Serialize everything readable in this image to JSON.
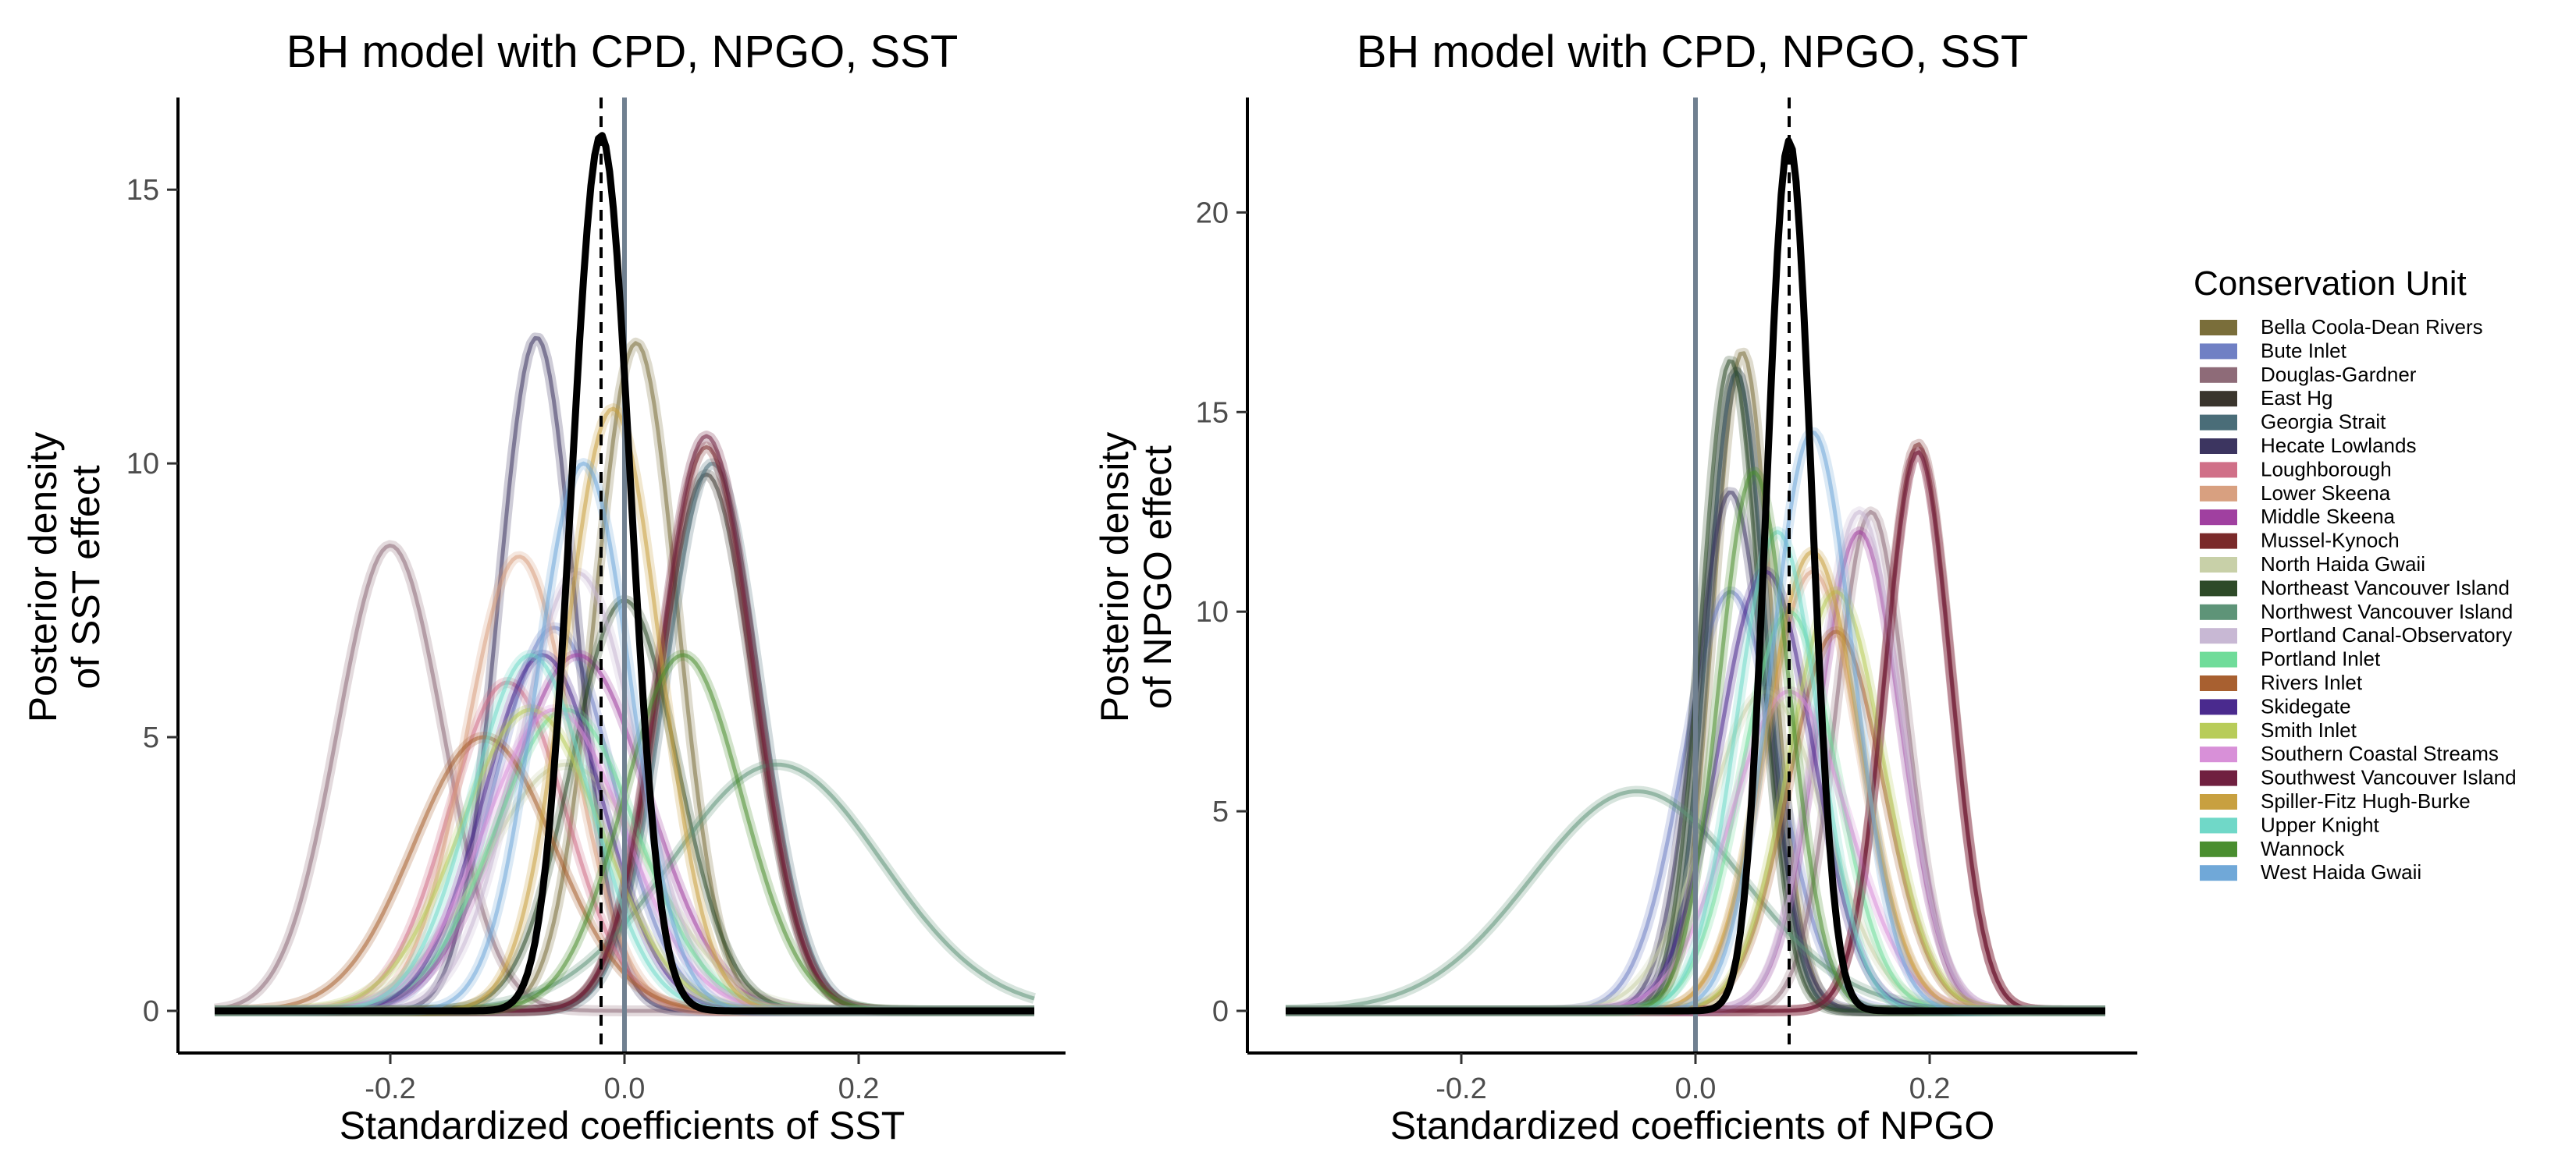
{
  "chart_data": [
    {
      "type": "line",
      "title": "BH model with CPD, NPGO, SST",
      "xlabel": "Standardized coefficients of SST",
      "ylabel": "Posterior density\nof SST effect",
      "xlim": [
        -0.35,
        0.35
      ],
      "ylim": [
        0,
        16
      ],
      "xticks": [
        -0.2,
        0.0,
        0.2
      ],
      "xtick_labels": [
        "-0.2",
        "0.0",
        "0.2"
      ],
      "yticks": [
        0,
        5,
        10,
        15
      ],
      "ytick_labels": [
        "0",
        "5",
        "10",
        "15"
      ],
      "reference_lines": [
        {
          "x": 0.0,
          "style": "solid",
          "color": "#708090"
        },
        {
          "x": -0.02,
          "style": "dashed",
          "color": "#000000"
        }
      ],
      "overall": {
        "mean": -0.02,
        "sd": 0.025,
        "peak": 16.0,
        "color": "#000000"
      },
      "cu_densities": [
        {
          "unit": "Bella Coola-Dean Rivers",
          "mean": 0.01,
          "sd": 0.035,
          "peak": 12.2
        },
        {
          "unit": "Bute Inlet",
          "mean": -0.06,
          "sd": 0.05,
          "peak": 7.0
        },
        {
          "unit": "Douglas-Gardner",
          "mean": -0.2,
          "sd": 0.045,
          "peak": 8.5
        },
        {
          "unit": "East Hg",
          "mean": 0.07,
          "sd": 0.04,
          "peak": 9.8
        },
        {
          "unit": "Georgia Strait",
          "mean": 0.075,
          "sd": 0.04,
          "peak": 10.0
        },
        {
          "unit": "Hecate Lowlands",
          "mean": -0.075,
          "sd": 0.033,
          "peak": 12.3
        },
        {
          "unit": "Loughborough",
          "mean": -0.1,
          "sd": 0.05,
          "peak": 6.0
        },
        {
          "unit": "Lower Skeena",
          "mean": -0.09,
          "sd": 0.045,
          "peak": 8.3
        },
        {
          "unit": "Middle Skeena",
          "mean": -0.04,
          "sd": 0.06,
          "peak": 6.5
        },
        {
          "unit": "Mussel-Kynoch",
          "mean": 0.07,
          "sd": 0.04,
          "peak": 10.3
        },
        {
          "unit": "North Haida Gwaii",
          "mean": -0.05,
          "sd": 0.07,
          "peak": 4.5
        },
        {
          "unit": "Northeast Vancouver Island",
          "mean": 0.0,
          "sd": 0.045,
          "peak": 7.5
        },
        {
          "unit": "Northwest Vancouver Island",
          "mean": 0.13,
          "sd": 0.09,
          "peak": 4.5
        },
        {
          "unit": "Portland Canal-Observatory",
          "mean": -0.04,
          "sd": 0.05,
          "peak": 8.0
        },
        {
          "unit": "Portland Inlet",
          "mean": -0.05,
          "sd": 0.06,
          "peak": 5.5
        },
        {
          "unit": "Rivers Inlet",
          "mean": -0.12,
          "sd": 0.06,
          "peak": 5.0
        },
        {
          "unit": "Skidegate",
          "mean": -0.07,
          "sd": 0.05,
          "peak": 6.5
        },
        {
          "unit": "Smith Inlet",
          "mean": -0.08,
          "sd": 0.06,
          "peak": 5.5
        },
        {
          "unit": "Southern Coastal Streams",
          "mean": -0.06,
          "sd": 0.06,
          "peak": 5.5
        },
        {
          "unit": "Southwest Vancouver Island",
          "mean": 0.07,
          "sd": 0.04,
          "peak": 10.5
        },
        {
          "unit": "Spiller-Fitz Hugh-Burke",
          "mean": -0.01,
          "sd": 0.04,
          "peak": 11.0
        },
        {
          "unit": "Upper Knight",
          "mean": -0.08,
          "sd": 0.05,
          "peak": 6.5
        },
        {
          "unit": "Wannock",
          "mean": 0.05,
          "sd": 0.05,
          "peak": 6.5
        },
        {
          "unit": "West Haida Gwaii",
          "mean": -0.035,
          "sd": 0.04,
          "peak": 10.0
        }
      ]
    },
    {
      "type": "line",
      "title": "BH model with CPD, NPGO, SST",
      "xlabel": "Standardized coefficients of NPGO",
      "ylabel": "Posterior density\nof NPGO effect",
      "xlim": [
        -0.35,
        0.35
      ],
      "ylim": [
        0,
        22
      ],
      "xticks": [
        -0.2,
        0.0,
        0.2
      ],
      "xtick_labels": [
        "-0.2",
        "0.0",
        "0.2"
      ],
      "yticks": [
        0,
        5,
        10,
        15,
        20
      ],
      "ytick_labels": [
        "0",
        "5",
        "10",
        "15",
        "20"
      ],
      "reference_lines": [
        {
          "x": 0.0,
          "style": "solid",
          "color": "#708090"
        },
        {
          "x": 0.08,
          "style": "dashed",
          "color": "#000000"
        }
      ],
      "overall": {
        "mean": 0.08,
        "sd": 0.019,
        "peak": 21.8,
        "color": "#000000"
      },
      "cu_densities": [
        {
          "unit": "Bella Coola-Dean Rivers",
          "mean": 0.04,
          "sd": 0.025,
          "peak": 16.5
        },
        {
          "unit": "Bute Inlet",
          "mean": 0.03,
          "sd": 0.04,
          "peak": 10.5
        },
        {
          "unit": "Douglas-Gardner",
          "mean": 0.15,
          "sd": 0.03,
          "peak": 12.5
        },
        {
          "unit": "East Hg",
          "mean": 0.035,
          "sd": 0.025,
          "peak": 16.0
        },
        {
          "unit": "Georgia Strait",
          "mean": 0.035,
          "sd": 0.025,
          "peak": 16.0
        },
        {
          "unit": "Hecate Lowlands",
          "mean": 0.03,
          "sd": 0.03,
          "peak": 13.0
        },
        {
          "unit": "Loughborough",
          "mean": 0.19,
          "sd": 0.028,
          "peak": 14.0
        },
        {
          "unit": "Lower Skeena",
          "mean": 0.1,
          "sd": 0.04,
          "peak": 11.0
        },
        {
          "unit": "Middle Skeena",
          "mean": 0.14,
          "sd": 0.035,
          "peak": 12.0
        },
        {
          "unit": "Mussel-Kynoch",
          "mean": 0.19,
          "sd": 0.028,
          "peak": 14.2
        },
        {
          "unit": "North Haida Gwaii",
          "mean": 0.06,
          "sd": 0.05,
          "peak": 8.0
        },
        {
          "unit": "Northeast Vancouver Island",
          "mean": 0.03,
          "sd": 0.025,
          "peak": 16.3
        },
        {
          "unit": "Northwest Vancouver Island",
          "mean": -0.05,
          "sd": 0.09,
          "peak": 5.5
        },
        {
          "unit": "Portland Canal-Observatory",
          "mean": 0.14,
          "sd": 0.035,
          "peak": 12.5
        },
        {
          "unit": "Portland Inlet",
          "mean": 0.08,
          "sd": 0.04,
          "peak": 10.0
        },
        {
          "unit": "Rivers Inlet",
          "mean": 0.12,
          "sd": 0.04,
          "peak": 9.5
        },
        {
          "unit": "Skidegate",
          "mean": 0.06,
          "sd": 0.04,
          "peak": 11.0
        },
        {
          "unit": "Smith Inlet",
          "mean": 0.12,
          "sd": 0.04,
          "peak": 10.5
        },
        {
          "unit": "Southern Coastal Streams",
          "mean": 0.08,
          "sd": 0.05,
          "peak": 8.0
        },
        {
          "unit": "Southwest Vancouver Island",
          "mean": 0.19,
          "sd": 0.028,
          "peak": 14.0
        },
        {
          "unit": "Spiller-Fitz Hugh-Burke",
          "mean": 0.1,
          "sd": 0.04,
          "peak": 11.5
        },
        {
          "unit": "Upper Knight",
          "mean": 0.07,
          "sd": 0.035,
          "peak": 12.0
        },
        {
          "unit": "Wannock",
          "mean": 0.05,
          "sd": 0.03,
          "peak": 13.5
        },
        {
          "unit": "West Haida Gwaii",
          "mean": 0.1,
          "sd": 0.035,
          "peak": 14.5
        }
      ]
    }
  ],
  "legend": {
    "title": "Conservation Unit",
    "placement": "right",
    "items": [
      {
        "label": "Bella Coola-Dean Rivers",
        "color": "#7a6e3a"
      },
      {
        "label": "Bute Inlet",
        "color": "#7080c4"
      },
      {
        "label": "Douglas-Gardner",
        "color": "#8e6b78"
      },
      {
        "label": "East Hg",
        "color": "#3a352d"
      },
      {
        "label": "Georgia Strait",
        "color": "#4a6d78"
      },
      {
        "label": "Hecate Lowlands",
        "color": "#3c3560"
      },
      {
        "label": "Loughborough",
        "color": "#d07088"
      },
      {
        "label": "Lower Skeena",
        "color": "#d8a080"
      },
      {
        "label": "Middle Skeena",
        "color": "#a040a0"
      },
      {
        "label": "Mussel-Kynoch",
        "color": "#7a2a2a"
      },
      {
        "label": "North Haida Gwaii",
        "color": "#c8d0a8"
      },
      {
        "label": "Northeast Vancouver Island",
        "color": "#2e4a28"
      },
      {
        "label": "Northwest Vancouver Island",
        "color": "#5e9478"
      },
      {
        "label": "Portland Canal-Observatory",
        "color": "#c8b8d4"
      },
      {
        "label": "Portland Inlet",
        "color": "#70dc9a"
      },
      {
        "label": "Rivers Inlet",
        "color": "#a86030"
      },
      {
        "label": "Skidegate",
        "color": "#4a2a8e"
      },
      {
        "label": "Smith Inlet",
        "color": "#b8cc5a"
      },
      {
        "label": "Southern Coastal Streams",
        "color": "#d890d8"
      },
      {
        "label": "Southwest Vancouver Island",
        "color": "#702040"
      },
      {
        "label": "Spiller-Fitz Hugh-Burke",
        "color": "#c8a040"
      },
      {
        "label": "Upper Knight",
        "color": "#70d8c8"
      },
      {
        "label": "Wannock",
        "color": "#4a8e30"
      },
      {
        "label": "West Haida Gwaii",
        "color": "#70a8d8"
      }
    ]
  }
}
